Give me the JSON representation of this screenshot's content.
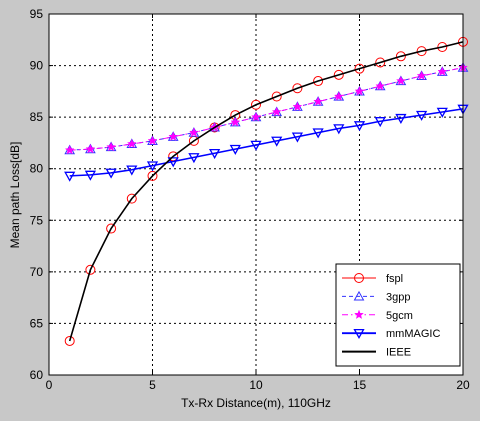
{
  "chart_data": {
    "type": "line",
    "title": "",
    "xlabel": "Tx-Rx Distance(m), 110GHz",
    "ylabel": "Mean path Loss[dB]",
    "xlim": [
      0,
      20
    ],
    "ylim": [
      60,
      95
    ],
    "xticks": [
      0,
      5,
      10,
      15,
      20
    ],
    "yticks": [
      60,
      65,
      70,
      75,
      80,
      85,
      90,
      95
    ],
    "grid": true,
    "legend_position": "bottom-right",
    "x": [
      1,
      2,
      3,
      4,
      5,
      6,
      7,
      8,
      9,
      10,
      11,
      12,
      13,
      14,
      15,
      16,
      17,
      18,
      19,
      20
    ],
    "series": [
      {
        "name": "fspl",
        "color": "#ff0000",
        "marker": "circle",
        "line": "solid",
        "values": [
          63.3,
          70.2,
          74.2,
          77.1,
          79.3,
          81.2,
          82.7,
          84.0,
          85.2,
          86.2,
          87.0,
          87.8,
          88.5,
          89.1,
          89.7,
          90.3,
          90.9,
          91.4,
          91.8,
          92.3
        ]
      },
      {
        "name": "3gpp",
        "color": "#3333ff",
        "marker": "triangle-up",
        "line": "dashed",
        "values": [
          81.8,
          81.9,
          82.1,
          82.4,
          82.7,
          83.1,
          83.5,
          84.0,
          84.5,
          85.0,
          85.5,
          86.0,
          86.5,
          87.0,
          87.5,
          88.0,
          88.5,
          89.0,
          89.4,
          89.8
        ]
      },
      {
        "name": "5gcm",
        "color": "#ff00ff",
        "marker": "star",
        "line": "dash-dot",
        "values": [
          81.8,
          81.9,
          82.1,
          82.4,
          82.7,
          83.1,
          83.5,
          84.0,
          84.5,
          85.0,
          85.5,
          86.0,
          86.5,
          87.0,
          87.5,
          88.0,
          88.5,
          89.0,
          89.4,
          89.8
        ]
      },
      {
        "name": "mmMAGIC",
        "color": "#0000ff",
        "marker": "triangle-down",
        "line": "solid",
        "values": [
          79.3,
          79.4,
          79.6,
          79.9,
          80.3,
          80.7,
          81.1,
          81.5,
          81.9,
          82.3,
          82.7,
          83.1,
          83.5,
          83.9,
          84.2,
          84.6,
          84.9,
          85.2,
          85.5,
          85.8
        ]
      },
      {
        "name": "IEEE",
        "color": "#000000",
        "marker": "none",
        "line": "solid",
        "values": [
          63.3,
          70.2,
          74.2,
          77.1,
          79.3,
          81.2,
          82.7,
          84.0,
          85.2,
          86.2,
          87.0,
          87.8,
          88.5,
          89.1,
          89.7,
          90.3,
          90.9,
          91.4,
          91.8,
          92.3
        ]
      }
    ]
  }
}
